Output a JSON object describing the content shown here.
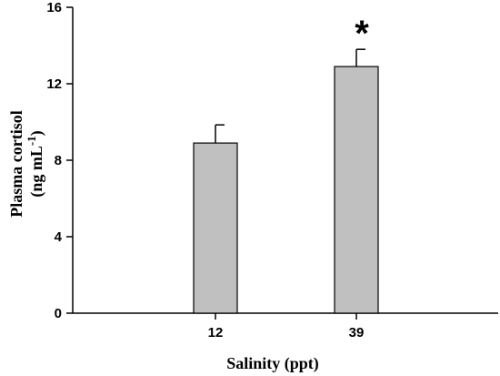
{
  "chart_data": {
    "type": "bar",
    "categories": [
      "12",
      "39"
    ],
    "values": [
      8.9,
      12.9
    ],
    "errors": [
      0.95,
      0.9
    ],
    "annotations": [
      "",
      "*"
    ],
    "title": "",
    "xlabel": "Salinity (ppt)",
    "ylabel_line1": "Plasma cortisol",
    "ylabel_line2_text": "(ng mL",
    "ylabel_line2_sup": "-1",
    "ylabel_line2_close": ")",
    "ylim": [
      0,
      16
    ],
    "yticks": [
      "0",
      "4",
      "8",
      "12",
      "16"
    ],
    "grid": false,
    "legend": "none",
    "bar_color": "#c0c0c0"
  }
}
